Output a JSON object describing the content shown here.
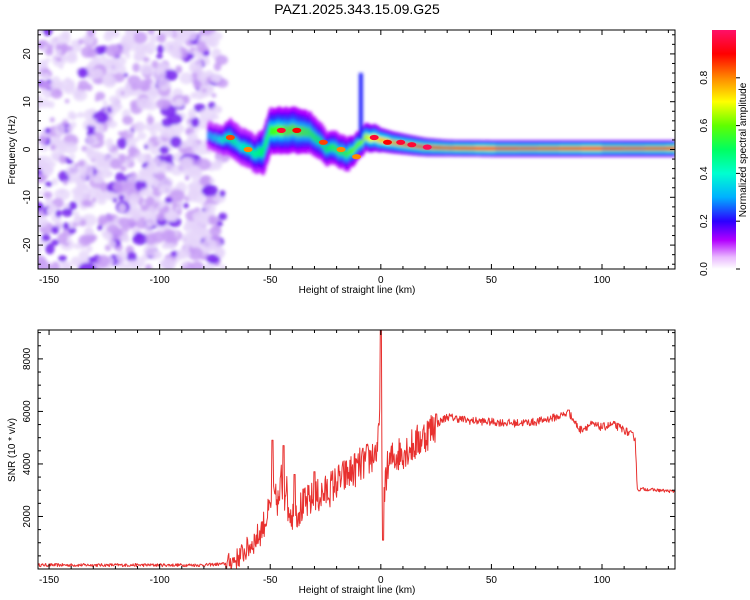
{
  "title": "PAZ1.2025.343.15.09.G25",
  "colors": {
    "snr_line": "#e8312f",
    "axis": "#000000",
    "background": "#ffffff",
    "speckle_light": "#d9c2f5",
    "speckle_dark": "#7a2bf0"
  },
  "chart_data": [
    {
      "type": "heatmap",
      "name": "spectrogram",
      "xlabel": "Height of straight line (km)",
      "ylabel": "Frequency (Hz)",
      "xlim": [
        -155,
        133
      ],
      "ylim": [
        -25,
        25
      ],
      "xticks": [
        -150,
        -100,
        -50,
        0,
        50,
        100
      ],
      "yticks": [
        -20,
        -10,
        0,
        10,
        20
      ],
      "noise_region_x": [
        -155,
        -75
      ],
      "ridge": {
        "x": [
          -78,
          -72,
          -68,
          -64,
          -60,
          -57,
          -53,
          -50,
          -45,
          -38,
          -32,
          -27,
          -24,
          -21,
          -18,
          -15,
          -12,
          -9,
          -7,
          -4,
          0,
          5,
          12,
          20,
          30,
          50,
          80,
          133
        ],
        "center": [
          3.0,
          2.0,
          2.5,
          1.0,
          0.0,
          -1.0,
          -0.5,
          4.0,
          4.0,
          4.0,
          3.5,
          1.5,
          0.0,
          0.5,
          -0.5,
          -1.0,
          0.0,
          1.5,
          2.5,
          2.5,
          2.0,
          1.5,
          1.0,
          0.5,
          0.3,
          0.2,
          0.2,
          0.2
        ],
        "width": [
          1.5,
          1.5,
          2.0,
          2.0,
          2.0,
          2.0,
          2.5,
          2.5,
          2.5,
          2.5,
          2.2,
          2.0,
          1.8,
          1.8,
          1.8,
          1.8,
          1.6,
          1.5,
          1.5,
          1.5,
          1.3,
          1.2,
          1.1,
          1.0,
          0.9,
          0.9,
          0.9,
          0.9
        ],
        "amplitude": [
          0.3,
          0.4,
          0.5,
          0.4,
          0.45,
          0.45,
          0.5,
          0.55,
          0.6,
          0.6,
          0.55,
          0.5,
          0.5,
          0.55,
          0.55,
          0.55,
          0.6,
          0.6,
          0.65,
          0.7,
          0.75,
          0.75,
          0.8,
          0.85,
          0.85,
          0.85,
          0.85,
          0.85
        ]
      },
      "ridge_hotspots": {
        "x": [
          -68,
          -60,
          -45,
          -38,
          -26,
          -18,
          -11,
          -3,
          3,
          9,
          14,
          21
        ],
        "center": [
          2.5,
          0.0,
          4.0,
          4.0,
          1.5,
          0.0,
          -1.5,
          2.5,
          1.5,
          1.5,
          1.0,
          0.5
        ],
        "amplitude": [
          0.85,
          0.8,
          0.95,
          0.9,
          0.85,
          0.8,
          0.8,
          0.95,
          0.9,
          0.95,
          0.95,
          0.98
        ]
      },
      "spike": {
        "x": -9,
        "from": 2,
        "to": 16
      }
    },
    {
      "type": "colorbar",
      "name": "amplitude-colorbar",
      "label": "Normalized spectral amplitude",
      "range": [
        0.0,
        1.0
      ],
      "ticks": [
        0.0,
        0.2,
        0.4,
        0.6,
        0.8
      ],
      "tick_labels": [
        "0.0",
        "0.2",
        "0.4",
        "0.6",
        "0.8"
      ],
      "colormap": [
        "#ffffff",
        "#b300ff",
        "#2b00ff",
        "#00b0ff",
        "#00ff90",
        "#40ff00",
        "#ffff00",
        "#ff8000",
        "#ff0000",
        "#ff1060"
      ]
    },
    {
      "type": "line",
      "name": "snr",
      "xlabel": "Height of straight line (km)",
      "ylabel": "SNR (10 * v/v)",
      "xlim": [
        -155,
        133
      ],
      "ylim": [
        0,
        9100
      ],
      "xticks": [
        -150,
        -100,
        -50,
        0,
        50,
        100
      ],
      "yticks": [
        2000,
        4000,
        6000,
        8000
      ],
      "x": [
        -155,
        -80,
        -70,
        -65,
        -60,
        -55,
        -52,
        -50,
        -48,
        -46,
        -45,
        -44,
        -43,
        -42,
        -40,
        -35,
        -30,
        -25,
        -20,
        -15,
        -10,
        -5,
        -2,
        -1,
        0,
        1,
        2,
        5,
        10,
        15,
        20,
        25,
        30,
        40,
        50,
        60,
        70,
        80,
        85,
        88,
        90,
        95,
        100,
        105,
        110,
        115,
        116,
        118,
        125,
        133
      ],
      "y": [
        150,
        150,
        200,
        400,
        800,
        1300,
        1900,
        2300,
        2700,
        2500,
        3500,
        2200,
        3400,
        2400,
        2100,
        2400,
        2700,
        2900,
        3300,
        3600,
        3900,
        4200,
        4500,
        4900,
        7000,
        1400,
        3600,
        4200,
        4500,
        4700,
        5100,
        5500,
        5800,
        5650,
        5600,
        5550,
        5600,
        5800,
        5950,
        5550,
        5300,
        5500,
        5400,
        5500,
        5300,
        5000,
        3000,
        3050,
        3000,
        2950
      ],
      "spikes": [
        {
          "x": -49,
          "y": 4900
        },
        {
          "x": -44,
          "y": 4700
        },
        {
          "x": -39,
          "y": 3600
        },
        {
          "x": -30,
          "y": 3700
        },
        {
          "x": 0,
          "y": 9100
        },
        {
          "x": 1,
          "y": 1100
        },
        {
          "x": 25,
          "y": 5900
        },
        {
          "x": 85,
          "y": 6050
        }
      ],
      "noise": {
        "base_amp": 60,
        "rise_amp": 700,
        "plateau_amp": 150,
        "tail_amp": 60
      }
    }
  ]
}
